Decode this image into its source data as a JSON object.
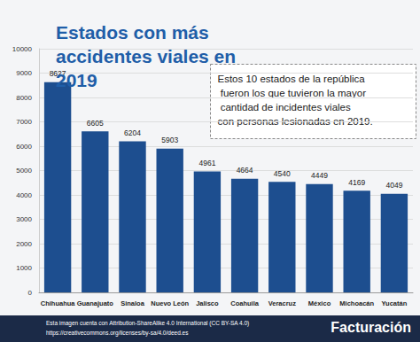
{
  "chart_data": {
    "type": "bar",
    "title": "Estados con más accidentes viales en 2019",
    "categories": [
      "Chihuahua",
      "Guanajuato",
      "Sinaloa",
      "Nuevo León",
      "Jalisco",
      "Coahuila",
      "Veracruz",
      "México",
      "Michoacán",
      "Yucatán"
    ],
    "values": [
      8627,
      6605,
      6204,
      5903,
      4961,
      4664,
      4540,
      4449,
      4169,
      4049
    ],
    "color": "#1d4e8f",
    "ylim": [
      0,
      10000
    ],
    "yticks": [
      0,
      1000,
      2000,
      3000,
      4000,
      5000,
      6000,
      7000,
      8000,
      9000,
      10000
    ],
    "grid": true,
    "data_labels": true,
    "annotations": [
      "Estos 10 estados de la república fueron los que tuvieron la mayor cantidad de incidentes viales con personas lesionadas en 2019.",
      "Esta imagen cuenta con Attribution-ShareAlike 4.0 International (CC BY-SA 4.0)",
      "https://creativecommons.org/licenses/by-sa/4.0/deed.es",
      "Facturación"
    ]
  }
}
